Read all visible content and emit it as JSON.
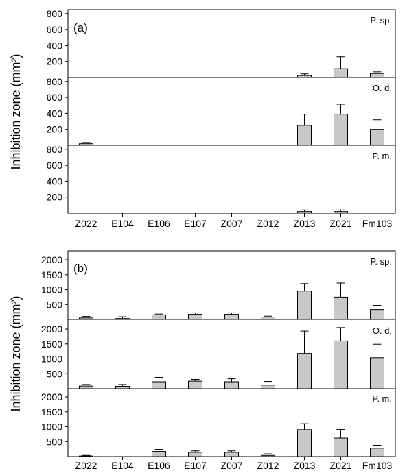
{
  "chart_data": [
    {
      "type": "bar",
      "panel_label": "(a)",
      "ylabel": "Inhibition zone (mm²)",
      "categories": [
        "Z022",
        "E104",
        "E106",
        "E107",
        "Z007",
        "Z012",
        "Z013",
        "Z021",
        "Fm103"
      ],
      "ylim": [
        0,
        850
      ],
      "yticks": [
        200,
        400,
        600,
        800
      ],
      "subpanels": [
        {
          "name": "P. sp.",
          "values": [
            0,
            0,
            3,
            3,
            0,
            0,
            25,
            110,
            50
          ],
          "errors": [
            0,
            0,
            0,
            0,
            0,
            0,
            20,
            150,
            20
          ]
        },
        {
          "name": "O. d.",
          "values": [
            20,
            0,
            0,
            0,
            0,
            0,
            250,
            390,
            200
          ],
          "errors": [
            15,
            0,
            0,
            0,
            0,
            0,
            140,
            125,
            120
          ]
        },
        {
          "name": "P. m.",
          "values": [
            0,
            0,
            0,
            0,
            0,
            0,
            20,
            20,
            0
          ],
          "errors": [
            0,
            0,
            0,
            0,
            0,
            0,
            20,
            20,
            0
          ]
        }
      ]
    },
    {
      "type": "bar",
      "panel_label": "(b)",
      "ylabel": "Inhibition zone (mm²)",
      "categories": [
        "Z022",
        "E104",
        "E106",
        "E107",
        "Z007",
        "Z012",
        "Z013",
        "Z021",
        "Fm103"
      ],
      "ylim": [
        0,
        2300
      ],
      "yticks": [
        500,
        1000,
        1500,
        2000
      ],
      "subpanels": [
        {
          "name": "P. sp.",
          "values": [
            50,
            30,
            150,
            170,
            170,
            80,
            950,
            750,
            330
          ],
          "errors": [
            50,
            60,
            30,
            50,
            50,
            30,
            250,
            470,
            140
          ]
        },
        {
          "name": "O. d.",
          "values": [
            90,
            80,
            230,
            250,
            230,
            120,
            1180,
            1600,
            1040
          ],
          "errors": [
            50,
            60,
            150,
            60,
            100,
            120,
            750,
            450,
            450
          ]
        },
        {
          "name": "P. m.",
          "values": [
            20,
            0,
            170,
            140,
            140,
            40,
            900,
            620,
            280
          ],
          "errors": [
            20,
            0,
            70,
            50,
            50,
            50,
            200,
            290,
            100
          ]
        }
      ]
    }
  ]
}
